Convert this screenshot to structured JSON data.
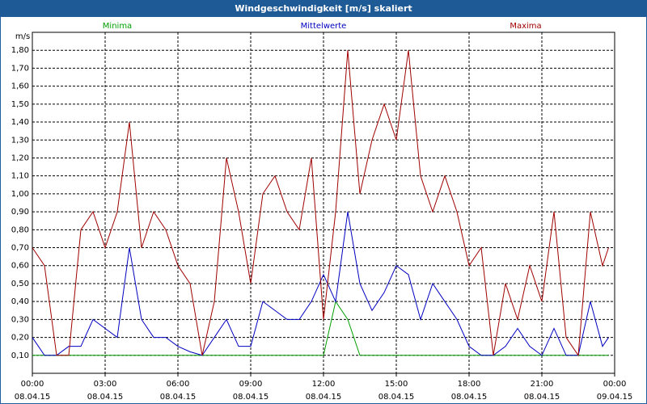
{
  "chart_data": {
    "type": "line",
    "title": "Windgeschwindigkeit [m/s] skaliert",
    "y_label": "m/s",
    "x": [
      0,
      0.5,
      1,
      1.5,
      2,
      2.5,
      3,
      3.5,
      4,
      4.5,
      5,
      5.5,
      6,
      6.5,
      7,
      7.5,
      8,
      8.5,
      9,
      9.5,
      10,
      10.5,
      11,
      11.5,
      12,
      12.5,
      13,
      13.5,
      14,
      14.5,
      15,
      15.5,
      16,
      16.5,
      17,
      17.5,
      18,
      18.5,
      19,
      19.5,
      20,
      20.5,
      21,
      21.5,
      22,
      22.5,
      23,
      23.5,
      23.75
    ],
    "series": [
      {
        "name": "Minima",
        "color": "#00a000",
        "values": [
          0.1,
          0.1,
          0.1,
          0.1,
          0.1,
          0.1,
          0.1,
          0.1,
          0.1,
          0.1,
          0.1,
          0.1,
          0.1,
          0.1,
          0.1,
          0.1,
          0.1,
          0.1,
          0.1,
          0.1,
          0.1,
          0.1,
          0.1,
          0.1,
          0.1,
          0.4,
          0.3,
          0.1,
          0.1,
          0.1,
          0.1,
          0.1,
          0.1,
          0.1,
          0.1,
          0.1,
          0.1,
          0.1,
          0.1,
          0.1,
          0.1,
          0.1,
          0.1,
          0.1,
          0.1,
          0.1,
          0.1,
          0.1,
          0.1
        ]
      },
      {
        "name": "Mittelwerte",
        "color": "#0000c0",
        "values": [
          0.2,
          0.1,
          0.1,
          0.15,
          0.15,
          0.3,
          0.25,
          0.2,
          0.7,
          0.3,
          0.2,
          0.2,
          0.15,
          0.12,
          0.1,
          0.2,
          0.3,
          0.15,
          0.15,
          0.4,
          0.35,
          0.3,
          0.3,
          0.4,
          0.55,
          0.4,
          0.9,
          0.5,
          0.35,
          0.45,
          0.6,
          0.55,
          0.3,
          0.5,
          0.4,
          0.3,
          0.15,
          0.1,
          0.1,
          0.15,
          0.25,
          0.15,
          0.1,
          0.25,
          0.1,
          0.1,
          0.4,
          0.15,
          0.2
        ]
      },
      {
        "name": "Maxima",
        "color": "#a00000",
        "values": [
          0.7,
          0.6,
          0.1,
          0.1,
          0.8,
          0.9,
          0.7,
          0.9,
          1.4,
          0.7,
          0.9,
          0.8,
          0.6,
          0.5,
          0.1,
          0.4,
          1.2,
          0.9,
          0.5,
          1.0,
          1.1,
          0.9,
          0.8,
          1.2,
          0.3,
          0.9,
          1.8,
          1.0,
          1.3,
          1.5,
          1.3,
          1.8,
          1.1,
          0.9,
          1.1,
          0.9,
          0.6,
          0.7,
          0.1,
          0.5,
          0.3,
          0.6,
          0.4,
          0.9,
          0.2,
          0.1,
          0.9,
          0.6,
          0.7
        ]
      }
    ],
    "xlim": [
      0,
      24
    ],
    "xticks": [
      {
        "value": 0,
        "label": "00:00"
      },
      {
        "value": 3,
        "label": "03:00"
      },
      {
        "value": 6,
        "label": "06:00"
      },
      {
        "value": 9,
        "label": "09:00"
      },
      {
        "value": 12,
        "label": "12:00"
      },
      {
        "value": 15,
        "label": "15:00"
      },
      {
        "value": 18,
        "label": "18:00"
      },
      {
        "value": 21,
        "label": "21:00"
      },
      {
        "value": 24,
        "label": "00:00"
      }
    ],
    "xtick_dates": [
      "08.04.15",
      "08.04.15",
      "08.04.15",
      "08.04.15",
      "08.04.15",
      "08.04.15",
      "08.04.15",
      "08.04.15",
      "09.04.15"
    ],
    "ylim": [
      0,
      1.9
    ],
    "yticks": [
      {
        "value": 0.1,
        "label": "0,10"
      },
      {
        "value": 0.2,
        "label": "0,20"
      },
      {
        "value": 0.3,
        "label": "0,30"
      },
      {
        "value": 0.4,
        "label": "0,40"
      },
      {
        "value": 0.5,
        "label": "0,50"
      },
      {
        "value": 0.6,
        "label": "0,60"
      },
      {
        "value": 0.7,
        "label": "0,70"
      },
      {
        "value": 0.8,
        "label": "0,80"
      },
      {
        "value": 0.9,
        "label": "0,90"
      },
      {
        "value": 1.0,
        "label": "1,00"
      },
      {
        "value": 1.1,
        "label": "1,10"
      },
      {
        "value": 1.2,
        "label": "1,20"
      },
      {
        "value": 1.3,
        "label": "1,30"
      },
      {
        "value": 1.4,
        "label": "1,40"
      },
      {
        "value": 1.5,
        "label": "1,50"
      },
      {
        "value": 1.6,
        "label": "1,60"
      },
      {
        "value": 1.7,
        "label": "1,70"
      },
      {
        "value": 1.8,
        "label": "1,80"
      }
    ],
    "grid": true
  }
}
